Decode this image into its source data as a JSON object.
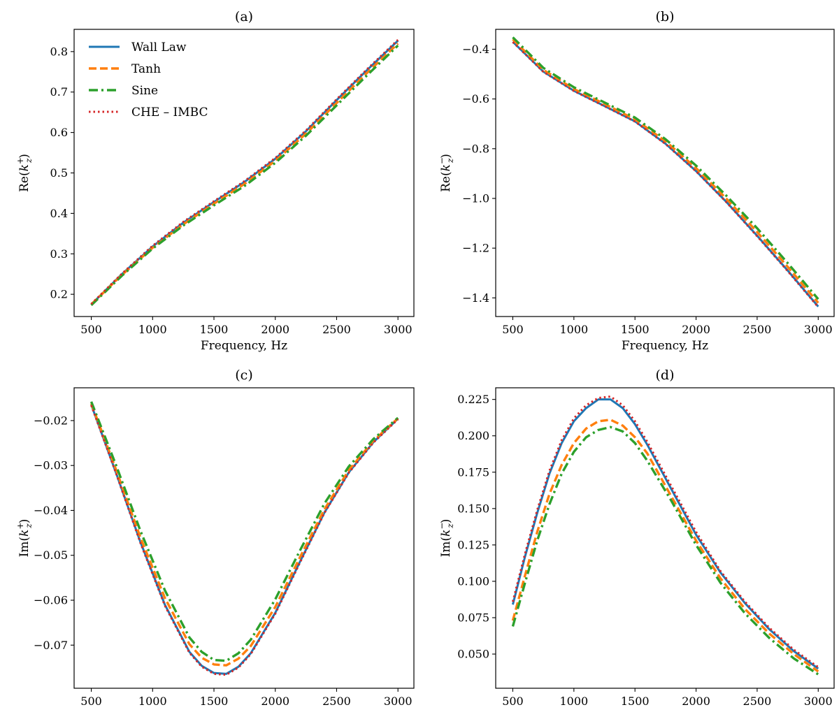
{
  "colors": {
    "wall_law": "#1f77b4",
    "tanh": "#ff7f0e",
    "sine": "#2ca02c",
    "che_imbc": "#d62728"
  },
  "legend": {
    "entries": [
      {
        "label": "Wall Law",
        "color": "#1f77b4",
        "style": "solid"
      },
      {
        "label": "Tanh",
        "color": "#ff7f0e",
        "style": "dashed"
      },
      {
        "label": "Sine",
        "color": "#2ca02c",
        "style": "dashdot"
      },
      {
        "label": "CHE – IMBC",
        "color": "#d62728",
        "style": "dotted"
      }
    ],
    "placement": "upper-left of panel (a)"
  },
  "chart_data": [
    {
      "panel": "(a)",
      "type": "line",
      "title": "(a)",
      "xlabel": "Frequency, Hz",
      "ylabel_pre": "Re(",
      "ylabel_k": "k",
      "ylabel_sub": "z",
      "ylabel_sup": "+",
      "ylabel_post": ")",
      "xlim": [
        360,
        3130
      ],
      "ylim": [
        0.145,
        0.855
      ],
      "xticks": [
        500,
        1000,
        1500,
        2000,
        2500,
        3000
      ],
      "yticks": [
        0.2,
        0.3,
        0.4,
        0.5,
        0.6,
        0.7,
        0.8
      ],
      "ytick_labels": [
        "0.2",
        "0.3",
        "0.4",
        "0.5",
        "0.6",
        "0.7",
        "0.8"
      ],
      "show_legend": true,
      "grid": false,
      "x": [
        500,
        750,
        1000,
        1250,
        1500,
        1750,
        2000,
        2250,
        2500,
        2750,
        3000
      ],
      "series": [
        {
          "name": "Wall Law",
          "values": [
            0.175,
            0.25,
            0.318,
            0.377,
            0.428,
            0.478,
            0.535,
            0.603,
            0.68,
            0.755,
            0.827
          ]
        },
        {
          "name": "Tanh",
          "values": [
            0.175,
            0.248,
            0.315,
            0.373,
            0.424,
            0.473,
            0.53,
            0.597,
            0.673,
            0.748,
            0.82
          ]
        },
        {
          "name": "Sine",
          "values": [
            0.173,
            0.246,
            0.313,
            0.37,
            0.42,
            0.468,
            0.525,
            0.592,
            0.667,
            0.742,
            0.815
          ]
        },
        {
          "name": "CHE – IMBC",
          "values": [
            0.176,
            0.251,
            0.32,
            0.379,
            0.43,
            0.48,
            0.537,
            0.605,
            0.682,
            0.757,
            0.829
          ]
        }
      ]
    },
    {
      "panel": "(b)",
      "type": "line",
      "title": "(b)",
      "xlabel": "Frequency, Hz",
      "ylabel_pre": "Re(",
      "ylabel_k": "k",
      "ylabel_sub": "z",
      "ylabel_sup": "−",
      "ylabel_post": ")",
      "xlim": [
        360,
        3130
      ],
      "ylim": [
        -1.475,
        -0.32
      ],
      "xticks": [
        500,
        1000,
        1500,
        2000,
        2500,
        3000
      ],
      "yticks": [
        -0.4,
        -0.6,
        -0.8,
        -1.0,
        -1.2,
        -1.4
      ],
      "ytick_labels": [
        "−0.4",
        "−0.6",
        "−0.8",
        "−1.0",
        "−1.2",
        "−1.4"
      ],
      "show_legend": false,
      "grid": false,
      "x": [
        500,
        750,
        1000,
        1250,
        1500,
        1750,
        2000,
        2250,
        2500,
        2750,
        3000
      ],
      "series": [
        {
          "name": "Wall Law",
          "values": [
            -0.37,
            -0.49,
            -0.567,
            -0.628,
            -0.69,
            -0.78,
            -0.89,
            -1.015,
            -1.15,
            -1.29,
            -1.435
          ]
        },
        {
          "name": "Tanh",
          "values": [
            -0.36,
            -0.483,
            -0.56,
            -0.62,
            -0.682,
            -0.77,
            -0.878,
            -1.002,
            -1.135,
            -1.275,
            -1.42
          ]
        },
        {
          "name": "Sine",
          "values": [
            -0.352,
            -0.475,
            -0.553,
            -0.614,
            -0.675,
            -0.762,
            -0.868,
            -0.99,
            -1.12,
            -1.26,
            -1.405
          ]
        },
        {
          "name": "CHE – IMBC",
          "values": [
            -0.371,
            -0.491,
            -0.568,
            -0.629,
            -0.691,
            -0.781,
            -0.891,
            -1.016,
            -1.152,
            -1.292,
            -1.437
          ]
        }
      ]
    },
    {
      "panel": "(c)",
      "type": "line",
      "title": "(c)",
      "xlabel": "Frequency, Hz",
      "ylabel_pre": "Im(",
      "ylabel_k": "k",
      "ylabel_sub": "z",
      "ylabel_sup": "+",
      "ylabel_post": ")",
      "xlim": [
        360,
        3130
      ],
      "ylim": [
        -0.0796,
        -0.0127
      ],
      "xticks": [
        500,
        1000,
        1500,
        2000,
        2500,
        3000
      ],
      "yticks": [
        -0.02,
        -0.03,
        -0.04,
        -0.05,
        -0.06,
        -0.07
      ],
      "ytick_labels": [
        "−0.02",
        "−0.03",
        "−0.04",
        "−0.05",
        "−0.06",
        "−0.07"
      ],
      "show_legend": false,
      "grid": false,
      "x": [
        500,
        700,
        900,
        1100,
        1300,
        1400,
        1500,
        1600,
        1700,
        1800,
        2000,
        2200,
        2400,
        2600,
        2800,
        3000
      ],
      "series": [
        {
          "name": "Wall Law",
          "values": [
            -0.0165,
            -0.0315,
            -0.047,
            -0.061,
            -0.0715,
            -0.0746,
            -0.0762,
            -0.0764,
            -0.0748,
            -0.0718,
            -0.0628,
            -0.0515,
            -0.0405,
            -0.0315,
            -0.0248,
            -0.0196
          ]
        },
        {
          "name": "Tanh",
          "values": [
            -0.0162,
            -0.0308,
            -0.046,
            -0.0595,
            -0.0698,
            -0.0728,
            -0.0743,
            -0.0745,
            -0.073,
            -0.0702,
            -0.0615,
            -0.0505,
            -0.0398,
            -0.031,
            -0.0245,
            -0.0195
          ]
        },
        {
          "name": "Sine",
          "values": [
            -0.0158,
            -0.0298,
            -0.0445,
            -0.0578,
            -0.0683,
            -0.0715,
            -0.0733,
            -0.0735,
            -0.0718,
            -0.0688,
            -0.0598,
            -0.049,
            -0.0385,
            -0.0302,
            -0.0241,
            -0.0194
          ]
        },
        {
          "name": "CHE – IMBC",
          "values": [
            -0.0166,
            -0.0316,
            -0.0472,
            -0.0612,
            -0.0717,
            -0.0748,
            -0.0764,
            -0.0766,
            -0.075,
            -0.072,
            -0.063,
            -0.0517,
            -0.0406,
            -0.0316,
            -0.0249,
            -0.0197
          ]
        }
      ]
    },
    {
      "panel": "(d)",
      "type": "line",
      "title": "(d)",
      "xlabel": "Frequency, Hz",
      "ylabel_pre": "Im(",
      "ylabel_k": "k",
      "ylabel_sub": "z",
      "ylabel_sup": "−",
      "ylabel_post": ")",
      "xlim": [
        360,
        3130
      ],
      "ylim": [
        0.0265,
        0.233
      ],
      "xticks": [
        500,
        1000,
        1500,
        2000,
        2500,
        3000
      ],
      "yticks": [
        0.05,
        0.075,
        0.1,
        0.125,
        0.15,
        0.175,
        0.2,
        0.225
      ],
      "ytick_labels": [
        "0.050",
        "0.075",
        "0.100",
        "0.125",
        "0.150",
        "0.175",
        "0.200",
        "0.225"
      ],
      "show_legend": false,
      "grid": false,
      "x": [
        500,
        600,
        700,
        800,
        900,
        1000,
        1100,
        1200,
        1300,
        1400,
        1500,
        1600,
        1800,
        2000,
        2200,
        2400,
        2600,
        2800,
        3000
      ],
      "series": [
        {
          "name": "Wall Law",
          "values": [
            0.084,
            0.117,
            0.147,
            0.174,
            0.195,
            0.21,
            0.219,
            0.225,
            0.225,
            0.219,
            0.208,
            0.194,
            0.163,
            0.132,
            0.106,
            0.085,
            0.067,
            0.052,
            0.04
          ]
        },
        {
          "name": "Tanh",
          "values": [
            0.073,
            0.104,
            0.134,
            0.16,
            0.18,
            0.195,
            0.205,
            0.21,
            0.211,
            0.207,
            0.199,
            0.188,
            0.158,
            0.128,
            0.102,
            0.081,
            0.064,
            0.05,
            0.038
          ]
        },
        {
          "name": "Sine",
          "values": [
            0.069,
            0.099,
            0.128,
            0.153,
            0.174,
            0.189,
            0.199,
            0.204,
            0.206,
            0.203,
            0.195,
            0.183,
            0.155,
            0.125,
            0.099,
            0.078,
            0.061,
            0.047,
            0.036
          ]
        },
        {
          "name": "CHE – IMBC",
          "values": [
            0.086,
            0.119,
            0.149,
            0.176,
            0.197,
            0.212,
            0.221,
            0.226,
            0.227,
            0.221,
            0.21,
            0.196,
            0.165,
            0.134,
            0.107,
            0.086,
            0.068,
            0.053,
            0.041
          ]
        }
      ]
    }
  ]
}
